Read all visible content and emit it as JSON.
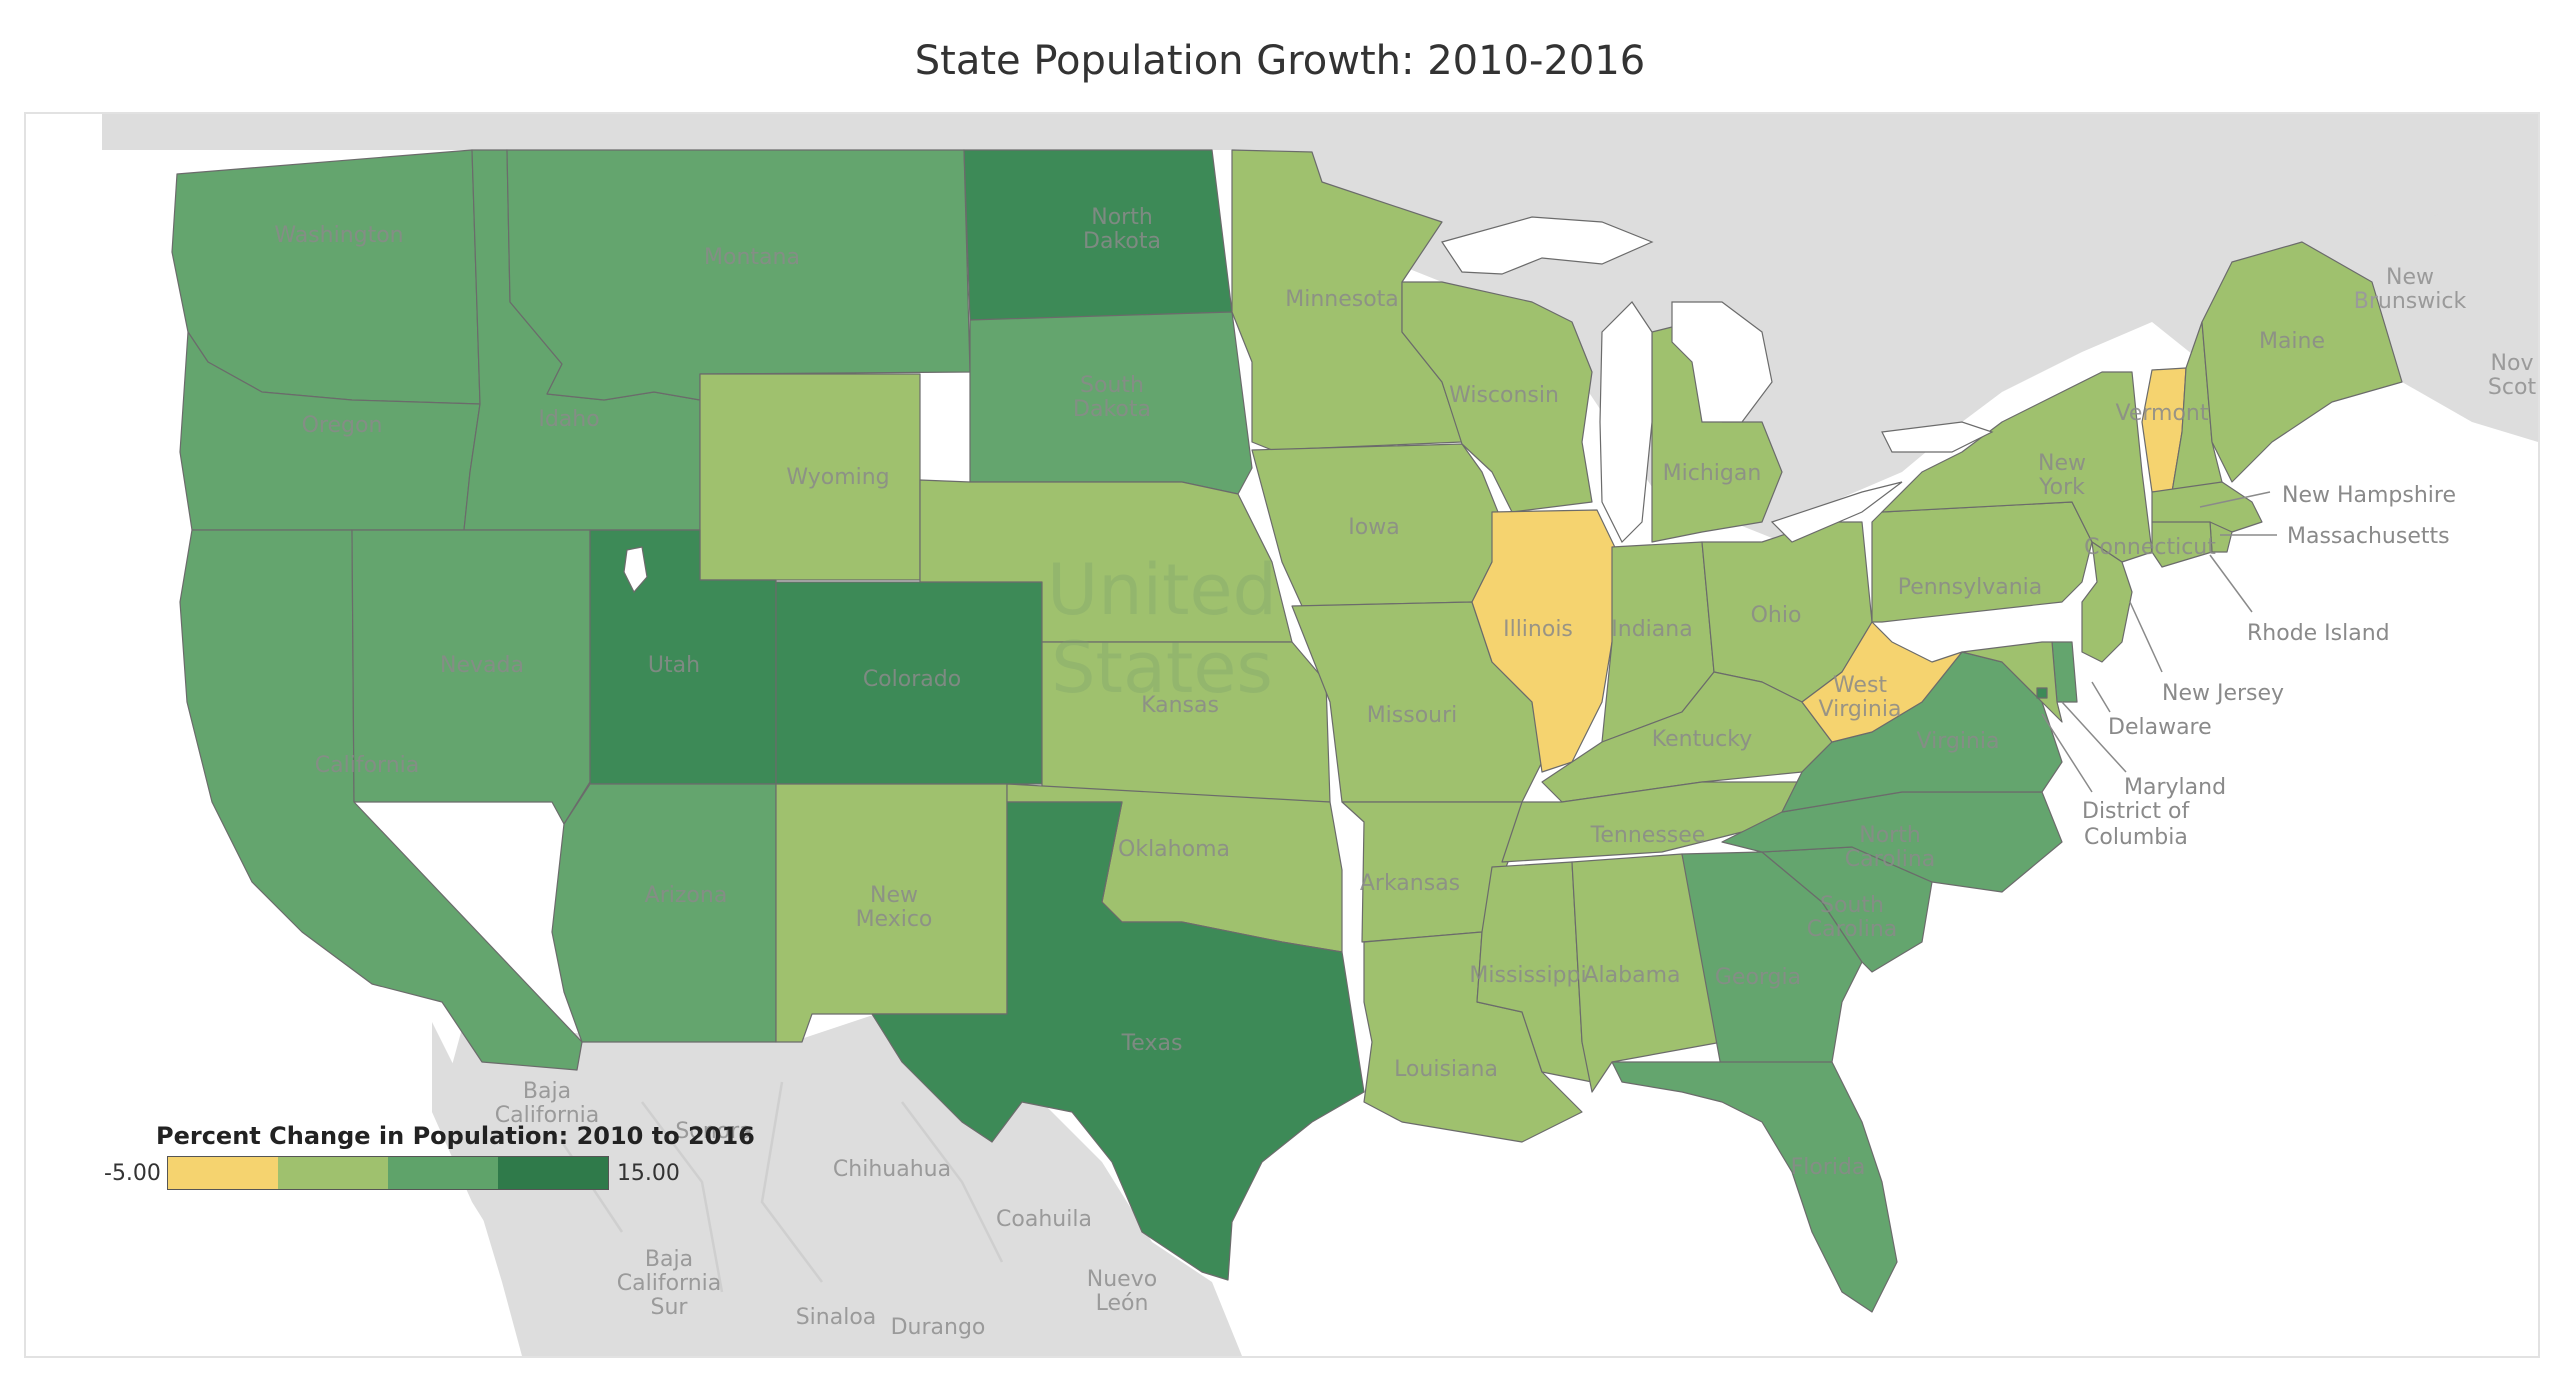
{
  "title": "State Population Growth: 2010-2016",
  "country_label": "United States",
  "colors": {
    "decline": "#f5d36f",
    "low": "#9fc16e",
    "mid": "#64a56e",
    "high": "#3d8a57"
  },
  "legend": {
    "title": "Percent Change in Population: 2010 to 2016",
    "min": "-5.00",
    "max": "15.00",
    "swatches": [
      "#f5d36f",
      "#9fc16e",
      "#5fa36a",
      "#2f7a4a"
    ]
  },
  "states": [
    {
      "id": "WA",
      "name": "Washington",
      "band": "mid"
    },
    {
      "id": "OR",
      "name": "Oregon",
      "band": "mid"
    },
    {
      "id": "CA",
      "name": "California",
      "band": "mid"
    },
    {
      "id": "ID",
      "name": "Idaho",
      "band": "mid"
    },
    {
      "id": "NV",
      "name": "Nevada",
      "band": "mid"
    },
    {
      "id": "MT",
      "name": "Montana",
      "band": "mid"
    },
    {
      "id": "WY",
      "name": "Wyoming",
      "band": "low"
    },
    {
      "id": "UT",
      "name": "Utah",
      "band": "high"
    },
    {
      "id": "CO",
      "name": "Colorado",
      "band": "high"
    },
    {
      "id": "AZ",
      "name": "Arizona",
      "band": "mid"
    },
    {
      "id": "NM",
      "name": "New Mexico",
      "band": "low"
    },
    {
      "id": "ND",
      "name": "North Dakota",
      "band": "high"
    },
    {
      "id": "SD",
      "name": "South Dakota",
      "band": "mid"
    },
    {
      "id": "NE",
      "name": "",
      "band": "low"
    },
    {
      "id": "KS",
      "name": "Kansas",
      "band": "low"
    },
    {
      "id": "OK",
      "name": "Oklahoma",
      "band": "low"
    },
    {
      "id": "TX",
      "name": "Texas",
      "band": "high"
    },
    {
      "id": "MN",
      "name": "Minnesota",
      "band": "low"
    },
    {
      "id": "IA",
      "name": "Iowa",
      "band": "low"
    },
    {
      "id": "MO",
      "name": "Missouri",
      "band": "low"
    },
    {
      "id": "AR",
      "name": "Arkansas",
      "band": "low"
    },
    {
      "id": "LA",
      "name": "Louisiana",
      "band": "low"
    },
    {
      "id": "WI",
      "name": "Wisconsin",
      "band": "low"
    },
    {
      "id": "IL",
      "name": "Illinois",
      "band": "decline"
    },
    {
      "id": "MI",
      "name": "Michigan",
      "band": "low"
    },
    {
      "id": "IN",
      "name": "Indiana",
      "band": "low"
    },
    {
      "id": "OH",
      "name": "Ohio",
      "band": "low"
    },
    {
      "id": "KY",
      "name": "Kentucky",
      "band": "low"
    },
    {
      "id": "TN",
      "name": "Tennessee",
      "band": "low"
    },
    {
      "id": "MS",
      "name": "Mississippi",
      "band": "low"
    },
    {
      "id": "AL",
      "name": "Alabama",
      "band": "low"
    },
    {
      "id": "GA",
      "name": "Georgia",
      "band": "mid"
    },
    {
      "id": "FL",
      "name": "Florida",
      "band": "mid"
    },
    {
      "id": "SC",
      "name": "South Carolina",
      "band": "mid"
    },
    {
      "id": "NC",
      "name": "North Carolina",
      "band": "mid"
    },
    {
      "id": "VA",
      "name": "Virginia",
      "band": "mid"
    },
    {
      "id": "WV",
      "name": "West Virginia",
      "band": "decline"
    },
    {
      "id": "PA",
      "name": "Pennsylvania",
      "band": "low"
    },
    {
      "id": "NY",
      "name": "New York",
      "band": "low"
    },
    {
      "id": "VT",
      "name": "Vermont",
      "band": "decline"
    },
    {
      "id": "NH",
      "name": "",
      "band": "low"
    },
    {
      "id": "ME",
      "name": "Maine",
      "band": "low"
    },
    {
      "id": "MA",
      "name": "",
      "band": "low"
    },
    {
      "id": "RI",
      "name": "",
      "band": "low"
    },
    {
      "id": "CT",
      "name": "Connecticut",
      "band": "low"
    },
    {
      "id": "NJ",
      "name": "",
      "band": "low"
    },
    {
      "id": "DE",
      "name": "",
      "band": "mid"
    },
    {
      "id": "MD",
      "name": "",
      "band": "low"
    },
    {
      "id": "DC",
      "name": "",
      "band": "high"
    }
  ],
  "callouts": {
    "new_hampshire": "New Hampshire",
    "massachusetts": "Massachusetts",
    "rhode_island": "Rhode Island",
    "new_jersey": "New Jersey",
    "delaware": "Delaware",
    "maryland": "Maryland",
    "dc_line1": "District of",
    "dc_line2": "Columbia"
  },
  "regions": {
    "new_brunswick_1": "New",
    "new_brunswick_2": "Brunswick",
    "nova_scotia_1": "Nov",
    "nova_scotia_2": "Scot",
    "baja_california_1": "Baja",
    "baja_california_2": "California",
    "sonora": "Sonora",
    "chihuahua": "Chihuahua",
    "coahuila": "Coahuila",
    "nuevo_leon_1": "Nuevo",
    "nuevo_leon_2": "León",
    "baja_california_sur_1": "Baja",
    "baja_california_sur_2": "California",
    "baja_california_sur_3": "Sur",
    "sinaloa": "Sinaloa",
    "durango": "Durango"
  }
}
